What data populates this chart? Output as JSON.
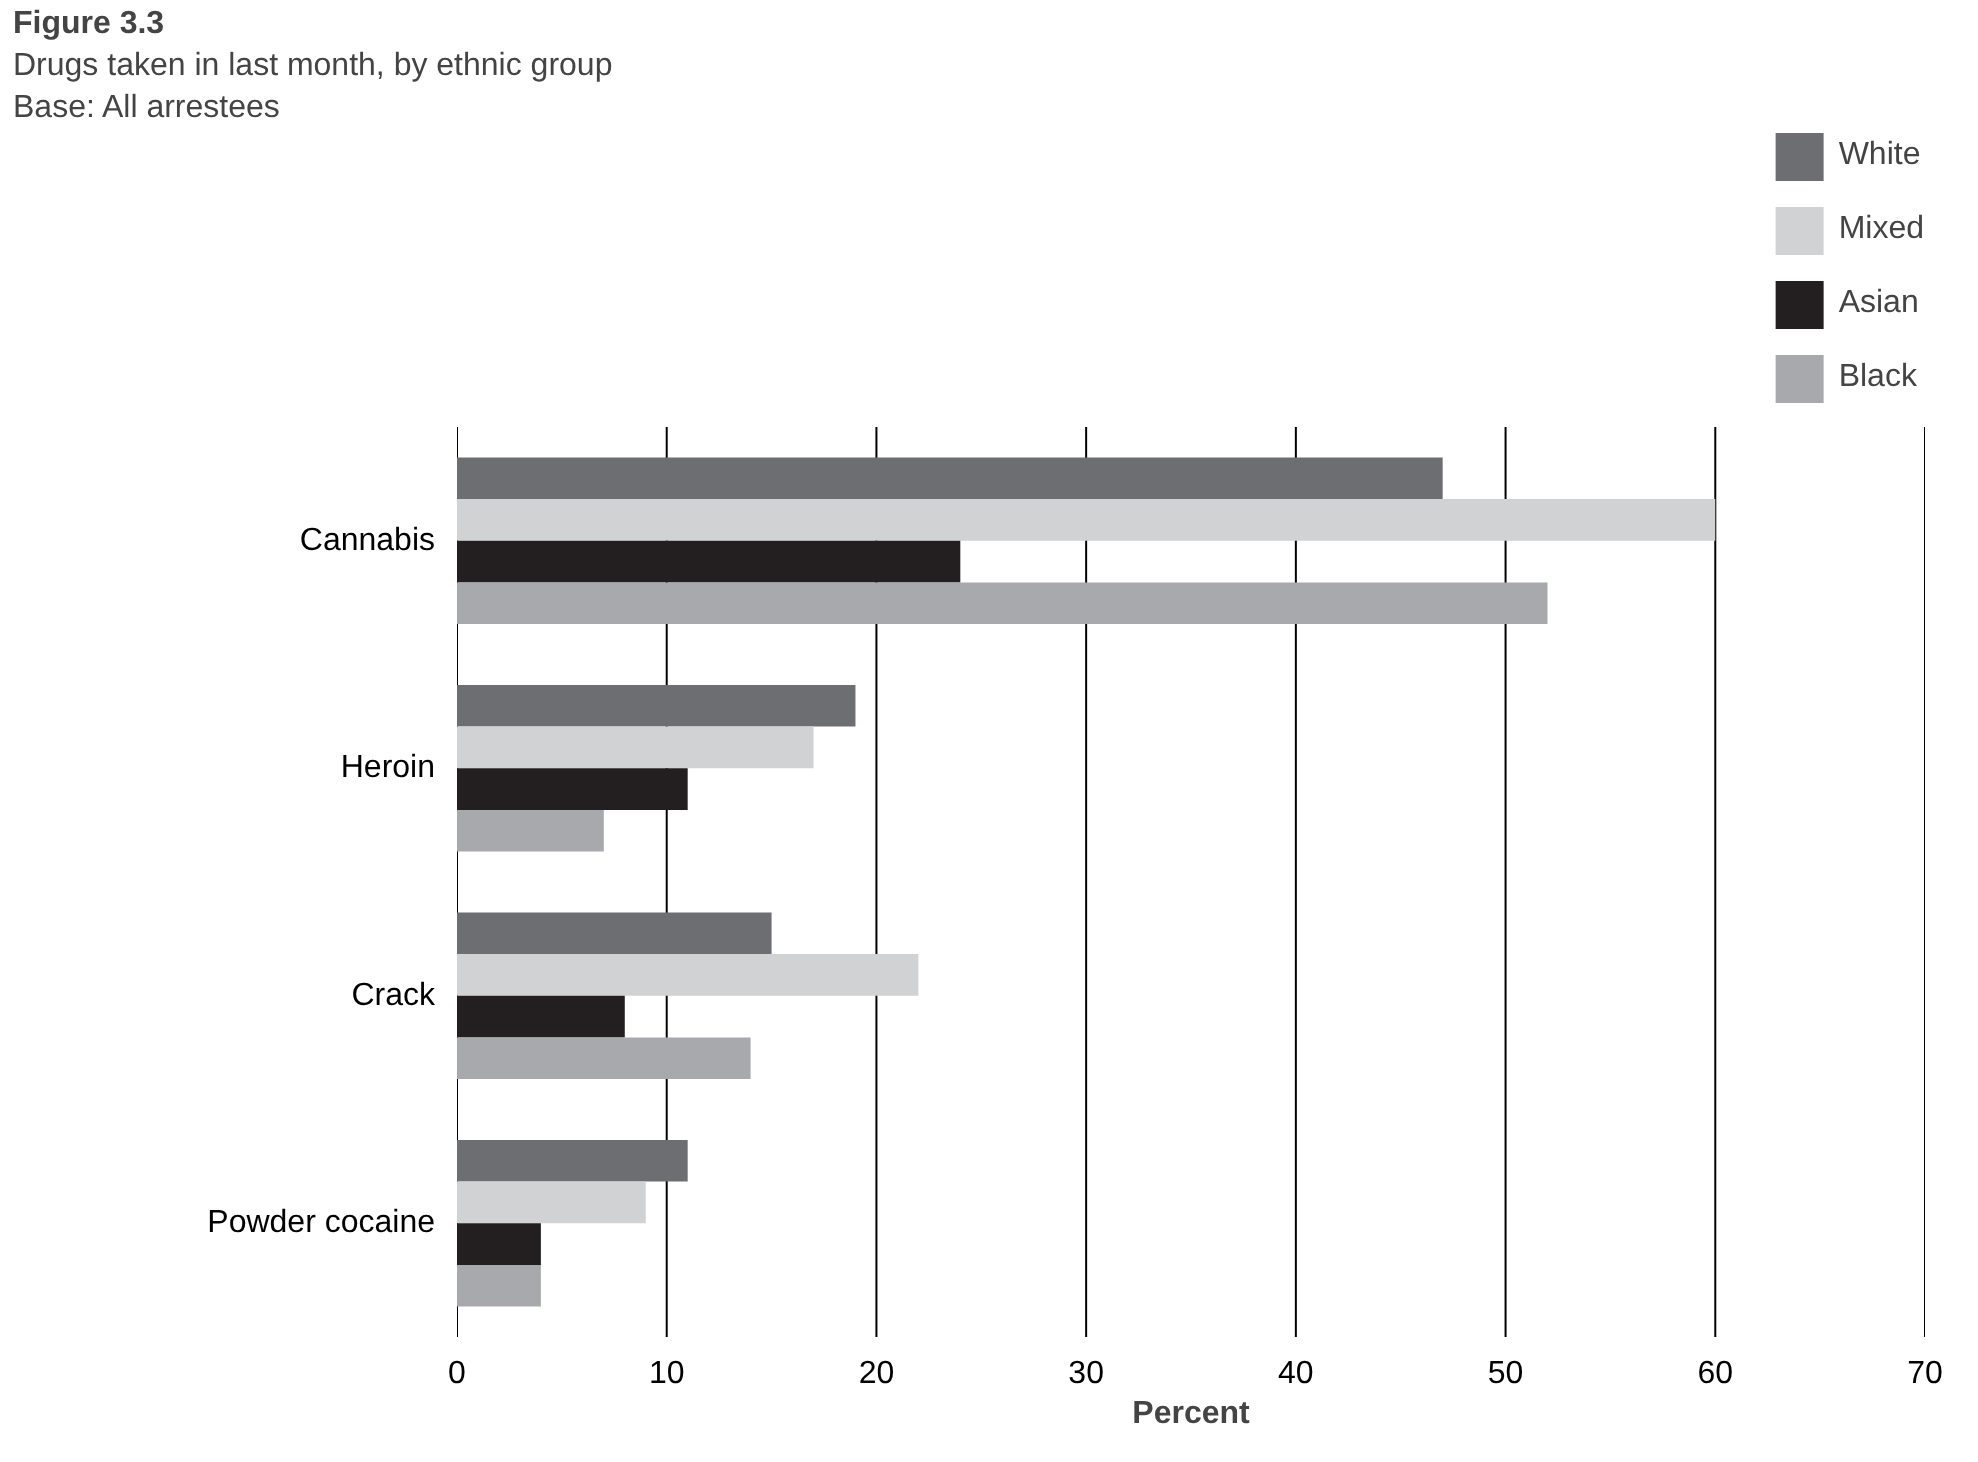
{
  "chart_data": {
    "type": "bar",
    "orientation": "horizontal",
    "title": "Figure 3.3",
    "subtitle": "Drugs taken in last month, by ethnic group",
    "annotations": [
      "Base: All arrestees"
    ],
    "xlabel": "Percent",
    "categories": [
      "Cannabis",
      "Heroin",
      "Crack",
      "Powder cocaine"
    ],
    "series": [
      {
        "name": "White",
        "color": "#6d6e71",
        "values": [
          47,
          19,
          15,
          11
        ]
      },
      {
        "name": "Mixed",
        "color": "#d1d2d4",
        "values": [
          60,
          17,
          22,
          9
        ]
      },
      {
        "name": "Asian",
        "color": "#231f20",
        "values": [
          24,
          11,
          8,
          4
        ]
      },
      {
        "name": "Black",
        "color": "#a7a9ac",
        "values": [
          52,
          7,
          14,
          4
        ]
      }
    ],
    "xlim": [
      0,
      70
    ],
    "xticks": [
      0,
      10,
      20,
      30,
      40,
      50,
      60,
      70
    ],
    "grid": "x",
    "legend": "top right"
  }
}
